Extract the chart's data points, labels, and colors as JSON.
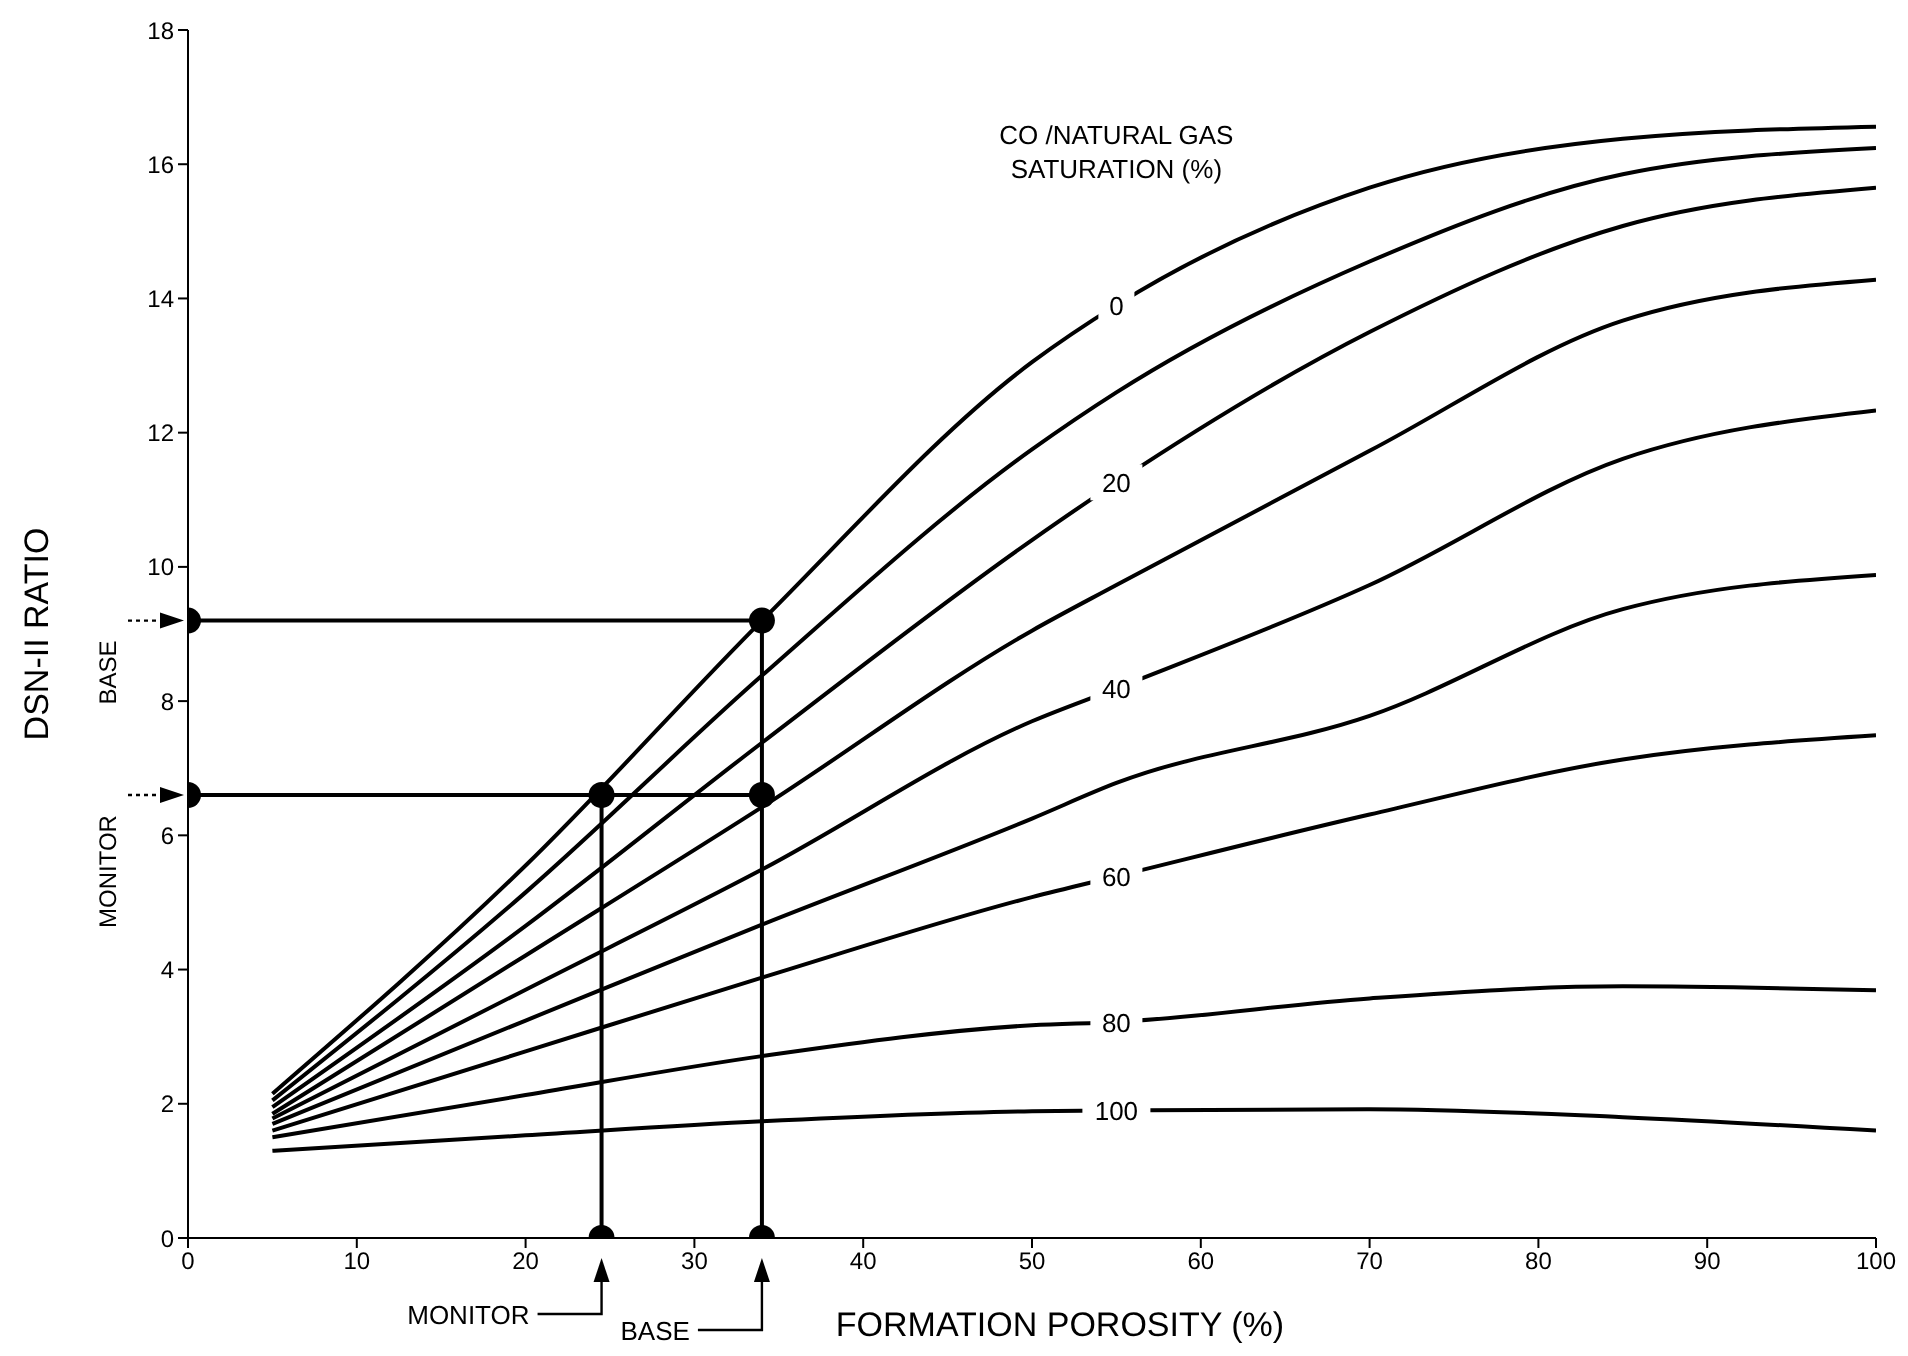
{
  "chart_data": {
    "type": "line",
    "xlabel": "FORMATION POROSITY (%)",
    "ylabel": "DSN-II RATIO",
    "legend_title": "CO /NATURAL GAS SATURATION (%)",
    "xlim": [
      0,
      100
    ],
    "xticks": [
      0,
      10,
      20,
      30,
      40,
      50,
      60,
      70,
      80,
      90,
      100
    ],
    "ylim": [
      0,
      18
    ],
    "yticks": [
      0,
      2,
      4,
      6,
      8,
      10,
      12,
      14,
      16,
      18
    ],
    "marker": "none",
    "series": [
      {
        "name": "0",
        "color": "#000000",
        "x": [
          5,
          20,
          34,
          50,
          55,
          70,
          85,
          100
        ],
        "values": [
          2.15,
          5.55,
          9.2,
          13.05,
          13.9,
          15.65,
          16.38,
          16.56
        ]
      },
      {
        "color": "#000000",
        "x": [
          5,
          20,
          34,
          50,
          55,
          70,
          85,
          100
        ],
        "values": [
          2.05,
          5.15,
          8.38,
          11.75,
          12.6,
          14.55,
          15.85,
          16.24
        ]
      },
      {
        "name": "20",
        "color": "#000000",
        "x": [
          5,
          20,
          34,
          50,
          55,
          70,
          85,
          100
        ],
        "values": [
          1.95,
          4.65,
          7.38,
          10.4,
          11.26,
          13.5,
          15.08,
          15.65
        ]
      },
      {
        "color": "#000000",
        "x": [
          5,
          20,
          34,
          50,
          55,
          70,
          85,
          100
        ],
        "values": [
          1.85,
          4.21,
          6.42,
          9.05,
          9.73,
          11.73,
          13.67,
          14.28
        ]
      },
      {
        "name": "40",
        "color": "#000000",
        "x": [
          5,
          20,
          34,
          50,
          55,
          70,
          85,
          100
        ],
        "values": [
          1.78,
          3.7,
          5.49,
          7.7,
          8.19,
          9.73,
          11.61,
          12.33
        ]
      },
      {
        "color": "#000000",
        "x": [
          5,
          20,
          34,
          50,
          55,
          70,
          85,
          100
        ],
        "values": [
          1.7,
          3.24,
          4.67,
          6.25,
          6.78,
          7.78,
          9.37,
          9.88
        ]
      },
      {
        "name": "60",
        "color": "#000000",
        "x": [
          5,
          20,
          34,
          50,
          55,
          70,
          85,
          100
        ],
        "values": [
          1.6,
          2.78,
          3.88,
          5.08,
          5.39,
          6.31,
          7.13,
          7.49
        ]
      },
      {
        "name": "80",
        "color": "#000000",
        "x": [
          5,
          20,
          34,
          50,
          55,
          70,
          85,
          100
        ],
        "values": [
          1.5,
          2.13,
          2.71,
          3.17,
          3.22,
          3.57,
          3.75,
          3.69
        ]
      },
      {
        "name": "100",
        "color": "#000000",
        "x": [
          5,
          20,
          34,
          50,
          55,
          70,
          85,
          100
        ],
        "values": [
          1.3,
          1.53,
          1.74,
          1.89,
          1.9,
          1.92,
          1.8,
          1.6
        ]
      },
      {
        "type": "line",
        "marker": "circle",
        "color": "#000000",
        "x": [
          0,
          34,
          34
        ],
        "values": [
          9.2,
          9.2,
          0
        ]
      },
      {
        "type": "line",
        "marker": "circle",
        "color": "#000000",
        "x": [
          0,
          34
        ],
        "values": [
          6.6,
          6.6
        ]
      },
      {
        "type": "line",
        "marker": "circle",
        "color": "#000000",
        "x": [
          24.5,
          24.5
        ],
        "values": [
          6.6,
          0
        ]
      }
    ],
    "annotations": [
      "BASE",
      "MONITOR",
      "MONITOR",
      "BASE"
    ]
  }
}
